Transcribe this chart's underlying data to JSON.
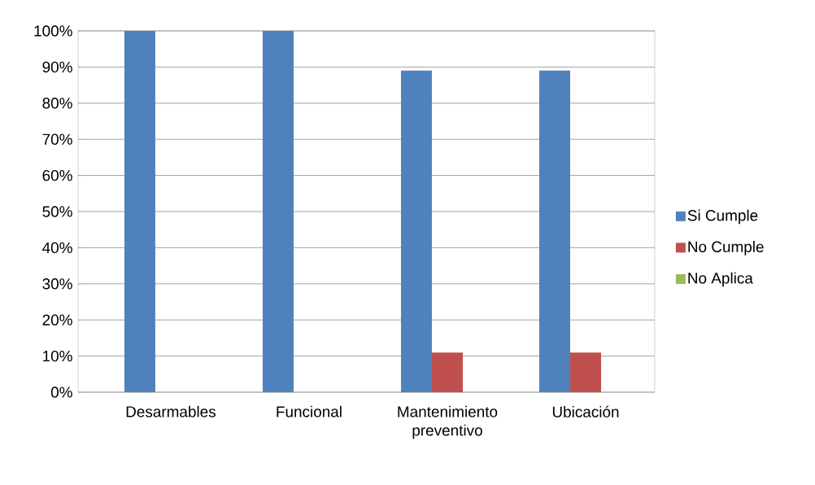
{
  "chart_data": {
    "type": "bar",
    "categories": [
      "Desarmables",
      "Funcional",
      "Mantenimiento preventivo",
      "Ubicación"
    ],
    "series": [
      {
        "name": "Si Cumple",
        "color": "#4f81bd",
        "values": [
          100,
          100,
          89,
          89
        ]
      },
      {
        "name": "No Cumple",
        "color": "#c0504d",
        "values": [
          0,
          0,
          11,
          11
        ]
      },
      {
        "name": "No Aplica",
        "color": "#9bbb59",
        "values": [
          0,
          0,
          0,
          0
        ]
      }
    ],
    "ylim": [
      0,
      100
    ],
    "yticks": [
      {
        "value": 0,
        "label": "0%"
      },
      {
        "value": 10,
        "label": "10%"
      },
      {
        "value": 20,
        "label": "20%"
      },
      {
        "value": 30,
        "label": "30%"
      },
      {
        "value": 40,
        "label": "40%"
      },
      {
        "value": 50,
        "label": "50%"
      },
      {
        "value": 60,
        "label": "60%"
      },
      {
        "value": 70,
        "label": "70%"
      },
      {
        "value": 80,
        "label": "80%"
      },
      {
        "value": 90,
        "label": "90%"
      },
      {
        "value": 100,
        "label": "100%"
      }
    ],
    "grid": "y",
    "legend": "right"
  }
}
